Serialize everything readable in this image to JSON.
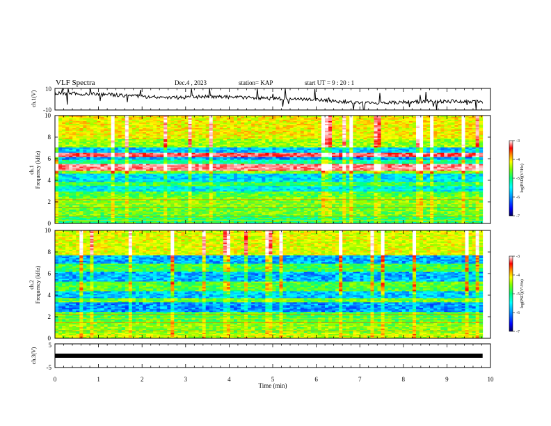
{
  "header": {
    "title": "VLF Spectra",
    "date": "Dec.4 , 2023",
    "station": "station= KAP",
    "start": "start  UT  =   9 : 20 : 1"
  },
  "chart_data": [
    {
      "type": "line",
      "name": "ch.1 waveform",
      "ylabel": "ch.1(V)",
      "ylim": [
        -10,
        10
      ],
      "yticks": [
        "10",
        "-10"
      ],
      "xlim": [
        0,
        10
      ],
      "x_end": 9.82,
      "approx_level": [
        5.5,
        5.0,
        4.5,
        3.0,
        2.0,
        1.5,
        2.5,
        2.0,
        1.0,
        0.5,
        0.0,
        -1.5,
        -3.0,
        -3.5,
        -2.5,
        -2.0,
        -2.0,
        -2.5
      ]
    },
    {
      "type": "heatmap",
      "name": "ch.1 spectrogram",
      "ylabel": "ch.1\nFrequency  (kHz)",
      "ylim": [
        0,
        10
      ],
      "xlim": [
        0,
        10
      ],
      "x_end": 9.82,
      "yticks": [
        "0",
        "2",
        "4",
        "6",
        "8",
        "10"
      ],
      "bands": [
        {
          "from": 0.0,
          "to": 0.6,
          "level": 0.42
        },
        {
          "from": 0.6,
          "to": 1.6,
          "level": 0.48
        },
        {
          "from": 1.6,
          "to": 2.4,
          "level": 0.5
        },
        {
          "from": 2.4,
          "to": 3.0,
          "level": 0.46
        },
        {
          "from": 3.0,
          "to": 3.5,
          "level": 0.3
        },
        {
          "from": 3.5,
          "to": 3.9,
          "level": 0.44
        },
        {
          "from": 3.9,
          "to": 4.6,
          "level": 0.28
        },
        {
          "from": 4.6,
          "to": 4.9,
          "level": 0.5
        },
        {
          "from": 4.9,
          "to": 5.5,
          "level": 0.9
        },
        {
          "from": 5.5,
          "to": 5.9,
          "level": 0.38
        },
        {
          "from": 5.9,
          "to": 6.2,
          "level": 0.22
        },
        {
          "from": 6.2,
          "to": 6.6,
          "level": 0.86
        },
        {
          "from": 6.6,
          "to": 7.0,
          "level": 0.26
        },
        {
          "from": 7.0,
          "to": 7.8,
          "level": 0.52
        },
        {
          "from": 7.8,
          "to": 10.0,
          "level": 0.6
        }
      ],
      "colorbar": {
        "label": "log(PSD)(V²/Hz)",
        "ticks": [
          "-3",
          "-4",
          "-5",
          "-6",
          "-7"
        ],
        "range": [
          -7,
          -3
        ]
      }
    },
    {
      "type": "heatmap",
      "name": "ch.2 spectrogram",
      "ylabel": "ch.2\nFrequency  (kHz)",
      "ylim": [
        0,
        10
      ],
      "xlim": [
        0,
        10
      ],
      "x_end": 9.82,
      "yticks": [
        "0",
        "2",
        "4",
        "6",
        "8",
        "10"
      ],
      "bands": [
        {
          "from": 0.0,
          "to": 0.5,
          "level": 0.55
        },
        {
          "from": 0.5,
          "to": 1.5,
          "level": 0.5
        },
        {
          "from": 1.5,
          "to": 2.4,
          "level": 0.46
        },
        {
          "from": 2.4,
          "to": 3.3,
          "level": 0.22
        },
        {
          "from": 3.3,
          "to": 3.7,
          "level": 0.48
        },
        {
          "from": 3.7,
          "to": 4.3,
          "level": 0.26
        },
        {
          "from": 4.3,
          "to": 5.2,
          "level": 0.46
        },
        {
          "from": 5.2,
          "to": 6.1,
          "level": 0.24
        },
        {
          "from": 6.1,
          "to": 6.9,
          "level": 0.44
        },
        {
          "from": 6.9,
          "to": 7.7,
          "level": 0.24
        },
        {
          "from": 7.7,
          "to": 10.0,
          "level": 0.58
        }
      ],
      "colorbar": {
        "label": "log(PSD)(V²/Hz)",
        "ticks": [
          "-3",
          "-4",
          "-5",
          "-6",
          "-7"
        ],
        "range": [
          -7,
          -3
        ]
      }
    },
    {
      "type": "line",
      "name": "ch.3 waveform",
      "ylabel": "ch.3(V)",
      "ylim": [
        -5,
        5
      ],
      "yticks": [
        "5",
        "-5"
      ],
      "xlim": [
        0,
        10
      ],
      "x_end": 9.82,
      "level": 0
    }
  ],
  "xaxis": {
    "label": "Time  (min)",
    "ticks": [
      "0",
      "1",
      "2",
      "3",
      "4",
      "5",
      "6",
      "7",
      "8",
      "9",
      "10"
    ]
  },
  "colors": {
    "colormap": [
      "#000060",
      "#0000ff",
      "#0080ff",
      "#00ffff",
      "#00ff80",
      "#80ff00",
      "#ffff00",
      "#ff8000",
      "#ff0000",
      "#ff9090",
      "#ffffff"
    ],
    "line": "#000000"
  }
}
